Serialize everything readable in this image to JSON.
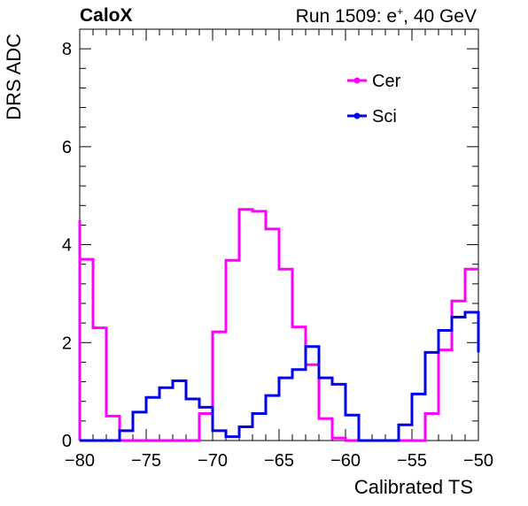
{
  "header": {
    "label": "CaloX",
    "run_prefix": "Run 1509: e",
    "run_sup": "+",
    "run_suffix": ", 40 GeV"
  },
  "chart_data": {
    "type": "line",
    "style": "step-histogram",
    "xlabel": "Calibrated TS",
    "ylabel": "DRS ADC",
    "xlim": [
      -80,
      -50
    ],
    "ylim": [
      0,
      8.4
    ],
    "x_ticks": [
      -80,
      -75,
      -70,
      -65,
      -60,
      -55,
      -50
    ],
    "x_tick_labels": [
      "−80",
      "−75",
      "−70",
      "−65",
      "−60",
      "−55",
      "−50"
    ],
    "y_ticks": [
      0,
      2,
      4,
      6,
      8
    ],
    "y_tick_labels": [
      "0",
      "2",
      "4",
      "6",
      "8"
    ],
    "grid": false,
    "legend_position": "top-right",
    "bin_edges": [
      -80,
      -79,
      -78,
      -77,
      -76,
      -75,
      -74,
      -73,
      -72,
      -71,
      -70,
      -69,
      -68,
      -67,
      -66,
      -65,
      -64,
      -63,
      -62,
      -61,
      -60,
      -59,
      -58,
      -57,
      -56,
      -55,
      -54,
      -53,
      -52,
      -51,
      -50
    ],
    "series": [
      {
        "name": "Cer",
        "color": "#ff00ff",
        "values": [
          3.7,
          2.3,
          0.5,
          0,
          0,
          0,
          0,
          0,
          0,
          0.55,
          2.22,
          3.68,
          4.72,
          4.68,
          4.32,
          3.5,
          2.32,
          1.55,
          0.45,
          0.05,
          0,
          0,
          0,
          0,
          0,
          0,
          0.55,
          1.85,
          2.85,
          3.5
        ],
        "start_value": 4.5
      },
      {
        "name": "Sci",
        "color": "#0000ee",
        "values": [
          0,
          0,
          0,
          0.2,
          0.58,
          0.88,
          1.08,
          1.22,
          0.85,
          0.68,
          0.2,
          0.08,
          0.28,
          0.55,
          0.92,
          1.28,
          1.45,
          1.92,
          1.28,
          1.15,
          0.52,
          0,
          0,
          0,
          0.32,
          0.95,
          1.8,
          2.25,
          2.52,
          2.62
        ],
        "end_value": 1.8
      }
    ]
  }
}
